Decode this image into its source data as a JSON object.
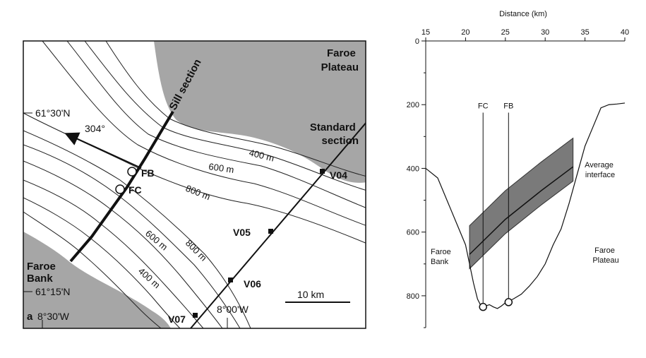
{
  "map": {
    "panel_letter": "a",
    "regions": {
      "faroe_plateau": "Faroe\nPlateau",
      "faroe_bank": "Faroe\nBank"
    },
    "sections": {
      "sill": "Sill section",
      "standard": "Standard\nsection"
    },
    "latitudes": [
      "61°30'N",
      "61°15'N"
    ],
    "longitudes": [
      "8°30'W",
      "8°00'W"
    ],
    "direction": "304°",
    "moorings": [
      "FB",
      "FC"
    ],
    "stations": [
      "V04",
      "V05",
      "V06",
      "V07"
    ],
    "contours": [
      "400 m",
      "600 m",
      "800 m",
      "600 m",
      "800 m",
      "400 m"
    ],
    "scale_bar": "10 km",
    "colors": {
      "land": "#a6a6a6",
      "line": "#222222"
    }
  },
  "section": {
    "x_axis_title": "Distance (km)",
    "x_ticks": [
      15,
      20,
      25,
      30,
      35,
      40
    ],
    "y_ticks": [
      0,
      200,
      400,
      600,
      800
    ],
    "xlim": [
      15,
      40
    ],
    "ylim": [
      0,
      900
    ],
    "interface_label": "Average\ninterface",
    "region_left": "Faroe\nBank",
    "region_right": "Faroe\nPlateau",
    "moorings": [
      {
        "name": "FC",
        "x": 22.2,
        "depth": 835
      },
      {
        "name": "FB",
        "x": 25.4,
        "depth": 820
      }
    ],
    "colors": {
      "band": "#7a7a7a"
    }
  },
  "chart_data": {
    "type": "line",
    "title": "",
    "xlabel": "Distance (km)",
    "ylabel": "",
    "xlim": [
      15,
      40
    ],
    "ylim": [
      900,
      0
    ],
    "grid": false,
    "series": [
      {
        "name": "",
        "x": [
          15,
          16.5,
          18,
          19,
          20,
          20.5,
          21,
          21.5,
          22,
          22.5,
          23,
          23.5,
          24,
          24.5,
          25,
          26,
          27,
          28,
          29,
          30,
          31,
          32,
          33,
          34,
          35,
          36,
          37,
          38,
          39,
          40
        ],
        "y": [
          400,
          430,
          520,
          580,
          640,
          700,
          760,
          810,
          835,
          832,
          828,
          835,
          840,
          832,
          822,
          810,
          795,
          770,
          740,
          700,
          640,
          590,
          510,
          420,
          330,
          270,
          210,
          200,
          198,
          195
        ]
      },
      {
        "name": "Average interface",
        "x": [
          20.5,
          25,
          29.5,
          33.5
        ],
        "y": [
          670,
          560,
          470,
          395
        ]
      }
    ]
  }
}
